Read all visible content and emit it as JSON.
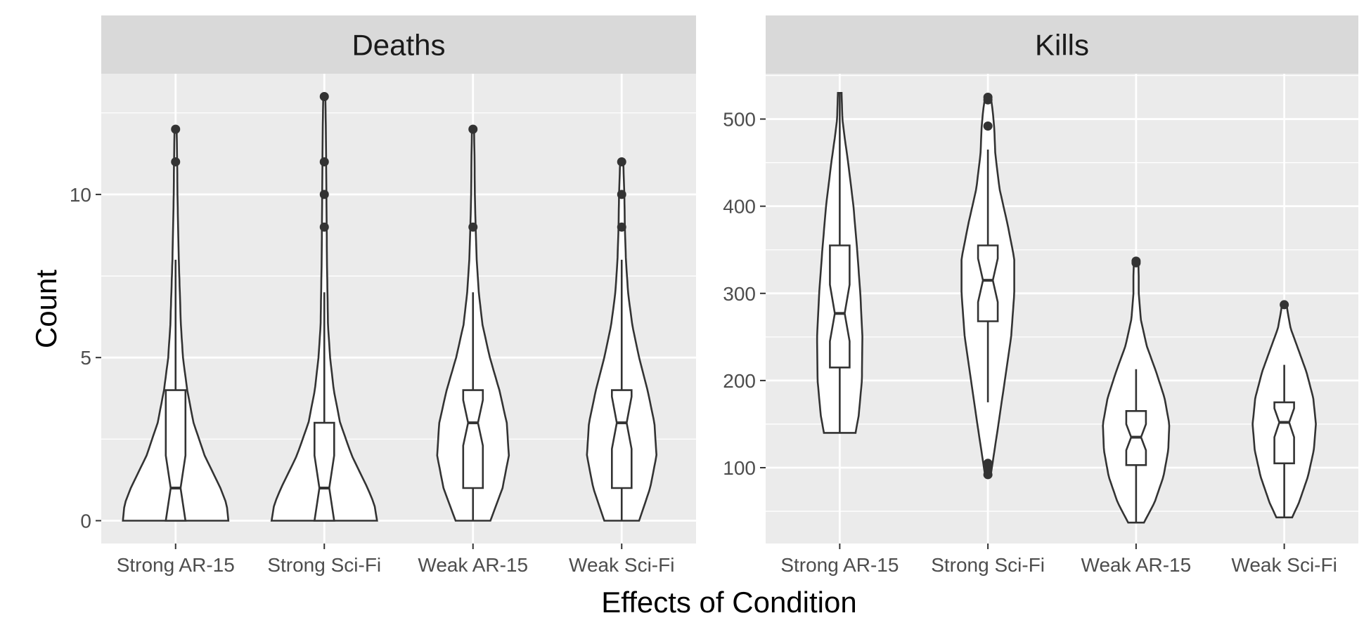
{
  "chart_data": {
    "type": "violin",
    "xlabel": "Effects of Condition",
    "ylabel": "Count",
    "categories": [
      "Strong AR-15",
      "Strong Sci-Fi",
      "Weak AR-15",
      "Weak Sci-Fi"
    ],
    "colors": {
      "panel_bg": "#ebebeb",
      "strip_bg": "#d9d9d9",
      "grid": "#ffffff",
      "violin_fill": "#ffffff",
      "stroke": "#333333"
    },
    "panels": [
      {
        "title": "Deaths",
        "ylim": [
          -0.7,
          13.7
        ],
        "y_ticks": [
          0,
          5,
          10
        ],
        "y_tick_labels": [
          "0",
          "5",
          "10"
        ],
        "groups": [
          {
            "category": "Strong AR-15",
            "min": 0,
            "q1": 0,
            "median": 1,
            "q3": 4,
            "whisker_low": 0,
            "whisker_high": 8,
            "notch": [
              0,
              2
            ],
            "outliers": [
              11,
              12
            ],
            "violin_max": 12,
            "density": [
              [
                0,
                1.0
              ],
              [
                0.5,
                0.97
              ],
              [
                1,
                0.85
              ],
              [
                2,
                0.55
              ],
              [
                3,
                0.34
              ],
              [
                4,
                0.22
              ],
              [
                5,
                0.14
              ],
              [
                6,
                0.1
              ],
              [
                8,
                0.06
              ],
              [
                10,
                0.035
              ],
              [
                11,
                0.03
              ],
              [
                12,
                0.02
              ]
            ]
          },
          {
            "category": "Strong Sci-Fi",
            "min": 0,
            "q1": 0,
            "median": 1,
            "q3": 3,
            "whisker_low": 0,
            "whisker_high": 7,
            "notch": [
              0,
              2
            ],
            "outliers": [
              9,
              10,
              11,
              13
            ],
            "violin_max": 13,
            "density": [
              [
                0,
                1.0
              ],
              [
                0.5,
                0.95
              ],
              [
                1,
                0.82
              ],
              [
                2,
                0.52
              ],
              [
                3,
                0.3
              ],
              [
                4,
                0.18
              ],
              [
                5,
                0.11
              ],
              [
                6,
                0.07
              ],
              [
                8,
                0.05
              ],
              [
                10,
                0.04
              ],
              [
                12,
                0.03
              ],
              [
                13,
                0.02
              ]
            ]
          },
          {
            "category": "Weak AR-15",
            "min": 0,
            "q1": 1,
            "median": 3,
            "q3": 4,
            "whisker_low": 0,
            "whisker_high": 7,
            "notch": [
              2.3,
              3.7
            ],
            "outliers": [
              9,
              12
            ],
            "violin_max": 12,
            "density": [
              [
                0,
                0.33
              ],
              [
                1,
                0.56
              ],
              [
                2,
                0.68
              ],
              [
                3,
                0.64
              ],
              [
                4,
                0.5
              ],
              [
                5,
                0.32
              ],
              [
                6,
                0.18
              ],
              [
                7,
                0.11
              ],
              [
                8,
                0.07
              ],
              [
                9,
                0.05
              ],
              [
                10,
                0.035
              ],
              [
                11,
                0.03
              ],
              [
                12,
                0.02
              ]
            ]
          },
          {
            "category": "Weak Sci-Fi",
            "min": 0,
            "q1": 1,
            "median": 3,
            "q3": 4,
            "whisker_low": 0,
            "whisker_high": 8,
            "notch": [
              2.2,
              3.8
            ],
            "outliers": [
              9,
              10,
              11
            ],
            "violin_max": 11,
            "density": [
              [
                0,
                0.33
              ],
              [
                1,
                0.54
              ],
              [
                2,
                0.66
              ],
              [
                3,
                0.62
              ],
              [
                4,
                0.49
              ],
              [
                5,
                0.33
              ],
              [
                6,
                0.2
              ],
              [
                7,
                0.12
              ],
              [
                8,
                0.08
              ],
              [
                9,
                0.06
              ],
              [
                10,
                0.05
              ],
              [
                11,
                0.03
              ]
            ]
          }
        ]
      },
      {
        "title": "Kills",
        "ylim": [
          13,
          552
        ],
        "y_ticks": [
          100,
          200,
          300,
          400,
          500
        ],
        "y_tick_labels": [
          "100",
          "200",
          "300",
          "400",
          "500"
        ],
        "groups": [
          {
            "category": "Strong AR-15",
            "min": 140,
            "q1": 215,
            "median": 277,
            "q3": 355,
            "whisker_low": 140,
            "whisker_high": 530,
            "notch": [
              245,
              310
            ],
            "outliers": [],
            "violin_max": 530,
            "density": [
              [
                140,
                0.3
              ],
              [
                160,
                0.36
              ],
              [
                200,
                0.42
              ],
              [
                250,
                0.43
              ],
              [
                300,
                0.39
              ],
              [
                350,
                0.33
              ],
              [
                400,
                0.26
              ],
              [
                450,
                0.16
              ],
              [
                480,
                0.09
              ],
              [
                500,
                0.05
              ],
              [
                520,
                0.04
              ],
              [
                530,
                0.035
              ]
            ]
          },
          {
            "category": "Strong Sci-Fi",
            "min": 92,
            "q1": 268,
            "median": 315,
            "q3": 355,
            "whisker_low": 175,
            "whisker_high": 465,
            "notch": [
              290,
              340
            ],
            "outliers": [
              92,
              100,
              105,
              492,
              522,
              525
            ],
            "violin_max": 527,
            "density": [
              [
                90,
                0.05
              ],
              [
                110,
                0.1
              ],
              [
                150,
                0.2
              ],
              [
                200,
                0.32
              ],
              [
                250,
                0.44
              ],
              [
                300,
                0.5
              ],
              [
                340,
                0.5
              ],
              [
                380,
                0.37
              ],
              [
                420,
                0.22
              ],
              [
                460,
                0.14
              ],
              [
                490,
                0.12
              ],
              [
                510,
                0.09
              ],
              [
                527,
                0.05
              ]
            ]
          },
          {
            "category": "Weak AR-15",
            "min": 37,
            "q1": 103,
            "median": 135,
            "q3": 165,
            "whisker_low": 37,
            "whisker_high": 213,
            "notch": [
              120,
              150
            ],
            "outliers": [
              335,
              337
            ],
            "violin_max": 340,
            "density": [
              [
                37,
                0.15
              ],
              [
                60,
                0.35
              ],
              [
                90,
                0.52
              ],
              [
                120,
                0.61
              ],
              [
                150,
                0.63
              ],
              [
                180,
                0.54
              ],
              [
                210,
                0.38
              ],
              [
                240,
                0.2
              ],
              [
                270,
                0.09
              ],
              [
                300,
                0.05
              ],
              [
                320,
                0.05
              ],
              [
                340,
                0.04
              ]
            ]
          },
          {
            "category": "Weak Sci-Fi",
            "min": 43,
            "q1": 105,
            "median": 152,
            "q3": 175,
            "whisker_low": 43,
            "whisker_high": 218,
            "notch": [
              135,
              168
            ],
            "outliers": [
              287
            ],
            "violin_max": 290,
            "density": [
              [
                43,
                0.15
              ],
              [
                60,
                0.28
              ],
              [
                90,
                0.45
              ],
              [
                120,
                0.56
              ],
              [
                150,
                0.6
              ],
              [
                180,
                0.55
              ],
              [
                210,
                0.42
              ],
              [
                240,
                0.24
              ],
              [
                260,
                0.12
              ],
              [
                280,
                0.06
              ],
              [
                290,
                0.04
              ]
            ]
          }
        ]
      }
    ]
  }
}
